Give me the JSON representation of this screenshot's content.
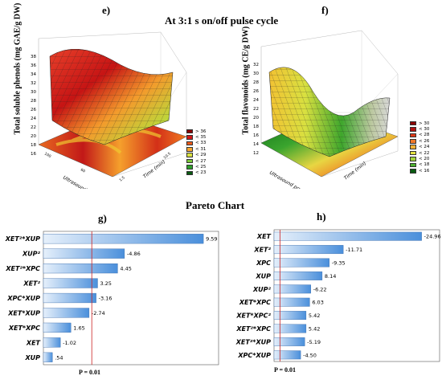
{
  "header": {
    "title": "At 3:1 s on/off pulse cycle",
    "pareto_title": "Pareto Chart"
  },
  "panel_e": {
    "tag": "e)",
    "ylabel": "Total soluble phenols (mg GAE/g DW)",
    "x1label": "Ultrasound power (%)",
    "x2label": "Time (min)",
    "z_ticks": [
      "38",
      "36",
      "34",
      "32",
      "30",
      "28",
      "26",
      "24",
      "22",
      "20",
      "18",
      "16"
    ],
    "legend": [
      {
        "label": "> 36",
        "color": "#8b0000"
      },
      {
        "label": "< 35",
        "color": "#d01818"
      },
      {
        "label": "< 33",
        "color": "#ee5a1a"
      },
      {
        "label": "< 31",
        "color": "#f8a630"
      },
      {
        "label": "< 29",
        "color": "#d8e040"
      },
      {
        "label": "< 27",
        "color": "#7cc83a"
      },
      {
        "label": "< 25",
        "color": "#2f9e2a"
      },
      {
        "label": "< 23",
        "color": "#0a5a12"
      }
    ]
  },
  "panel_f": {
    "tag": "f)",
    "ylabel": "Total flavonoids (mg CE/g DW)",
    "x1label": "Ultrasound power (%)",
    "x2label": "Time (min)",
    "z_ticks": [
      "32",
      "30",
      "28",
      "26",
      "24",
      "22",
      "20",
      "18",
      "16",
      "14",
      "12"
    ],
    "legend": [
      {
        "label": "> 30",
        "color": "#8b0000"
      },
      {
        "label": "< 30",
        "color": "#b01010"
      },
      {
        "label": "< 28",
        "color": "#dd3a18"
      },
      {
        "label": "< 26",
        "color": "#f17828"
      },
      {
        "label": "< 24",
        "color": "#f8b234"
      },
      {
        "label": "< 22",
        "color": "#e4e242"
      },
      {
        "label": "< 20",
        "color": "#a2d23c"
      },
      {
        "label": "< 18",
        "color": "#4cae2e"
      },
      {
        "label": "< 16",
        "color": "#0a5a12"
      }
    ]
  },
  "panel_g": {
    "tag": "g)",
    "p_label": "P = 0.01",
    "chart_data": {
      "type": "bar",
      "orientation": "horizontal",
      "categories": [
        "XET²*XUP",
        "XUP²",
        "XET²*XPC",
        "XET²",
        "XPC*XUP",
        "XET*XUP",
        "XET*XPC",
        "XET",
        "XUP"
      ],
      "values": [
        9.59,
        -4.86,
        4.45,
        3.25,
        -3.16,
        -2.74,
        1.65,
        -1.02,
        0.54
      ],
      "value_labels": [
        "9.59",
        "-4.86",
        "4.45",
        "3.25",
        "-3.16",
        "-2.74",
        "1.65",
        "-1.02",
        ".54"
      ],
      "reference_line": 2.9,
      "xlim": [
        0,
        10.5
      ]
    }
  },
  "panel_h": {
    "tag": "h)",
    "p_label": "P = 0.01",
    "chart_data": {
      "type": "bar",
      "orientation": "horizontal",
      "categories": [
        "XET",
        "XET²",
        "XPC",
        "XUP",
        "XUP²",
        "XET*XPC",
        "XET*XPC²",
        "XET²*XPC",
        "XET²*XUP",
        "XPC*XUP"
      ],
      "values": [
        -24.96,
        -11.71,
        -9.35,
        8.14,
        -6.22,
        6.03,
        5.42,
        5.42,
        -5.19,
        -4.5
      ],
      "value_labels": [
        "-24.96",
        "-11.71",
        "-9.35",
        "8.14",
        "-6.22",
        "6.03",
        "5.42",
        "5.42",
        "-5.19",
        "-4.50"
      ],
      "reference_line": 1.0,
      "xlim": [
        0,
        28
      ]
    }
  }
}
